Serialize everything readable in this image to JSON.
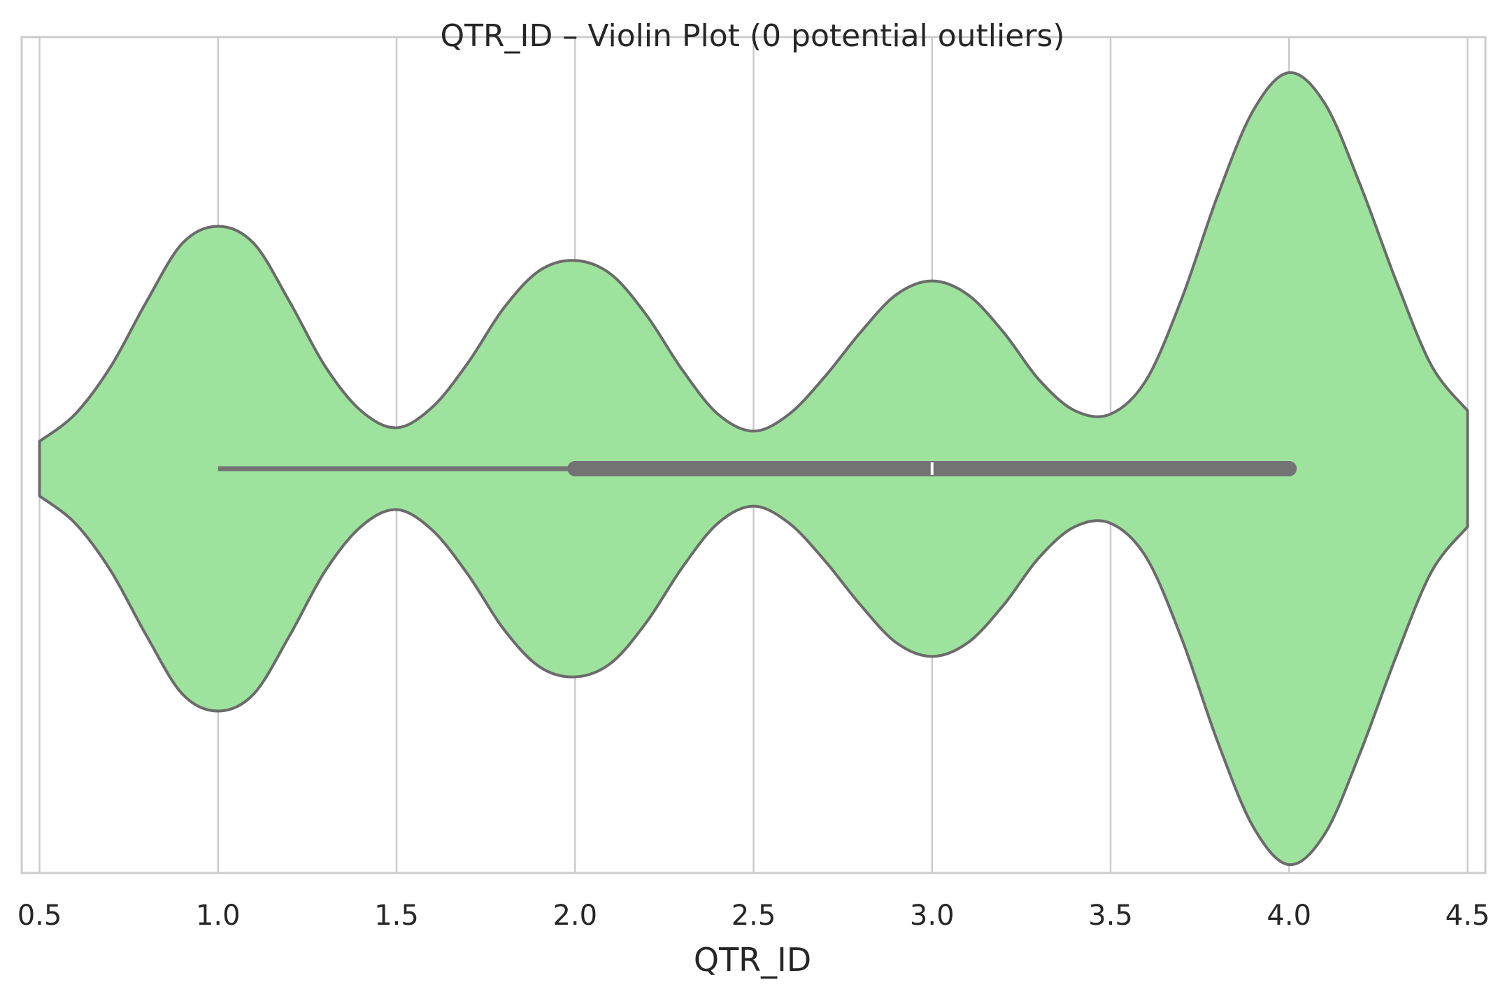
{
  "chart_data": {
    "type": "violin",
    "orientation": "horizontal",
    "title": "QTR_ID – Violin Plot (0 potential outliers)",
    "xlabel": "QTR_ID",
    "ylabel": "",
    "xlim": [
      0.45,
      4.55
    ],
    "xticks": [
      0.5,
      1.0,
      1.5,
      2.0,
      2.5,
      3.0,
      3.5,
      4.0,
      4.5
    ],
    "xtick_labels": [
      "0.5",
      "1.0",
      "1.5",
      "2.0",
      "2.5",
      "3.0",
      "3.5",
      "4.0",
      "4.5"
    ],
    "grid": "vertical",
    "fill_color": "#9de29d",
    "edge_color": "#6b6b6b",
    "box_color": "#737373",
    "median_color": "#ffffff",
    "density": {
      "x": [
        0.5,
        0.6,
        0.7,
        0.8,
        0.9,
        1.0,
        1.1,
        1.2,
        1.3,
        1.4,
        1.5,
        1.6,
        1.7,
        1.8,
        1.9,
        2.0,
        2.1,
        2.2,
        2.3,
        2.4,
        2.5,
        2.6,
        2.7,
        2.8,
        2.9,
        3.0,
        3.1,
        3.2,
        3.3,
        3.4,
        3.5,
        3.6,
        3.7,
        3.8,
        3.9,
        4.0,
        4.1,
        4.2,
        4.3,
        4.4,
        4.5
      ],
      "half_width": [
        0.08,
        0.16,
        0.3,
        0.49,
        0.66,
        0.71,
        0.66,
        0.49,
        0.3,
        0.17,
        0.12,
        0.18,
        0.31,
        0.47,
        0.58,
        0.61,
        0.57,
        0.45,
        0.29,
        0.16,
        0.11,
        0.16,
        0.27,
        0.4,
        0.51,
        0.55,
        0.51,
        0.4,
        0.26,
        0.17,
        0.16,
        0.26,
        0.5,
        0.8,
        1.05,
        1.16,
        1.07,
        0.83,
        0.55,
        0.3,
        0.17
      ]
    },
    "box": {
      "whisker_low": 1.0,
      "q1": 2.0,
      "median": 3.0,
      "q3": 4.0,
      "whisker_high": 4.0
    },
    "outliers": []
  }
}
